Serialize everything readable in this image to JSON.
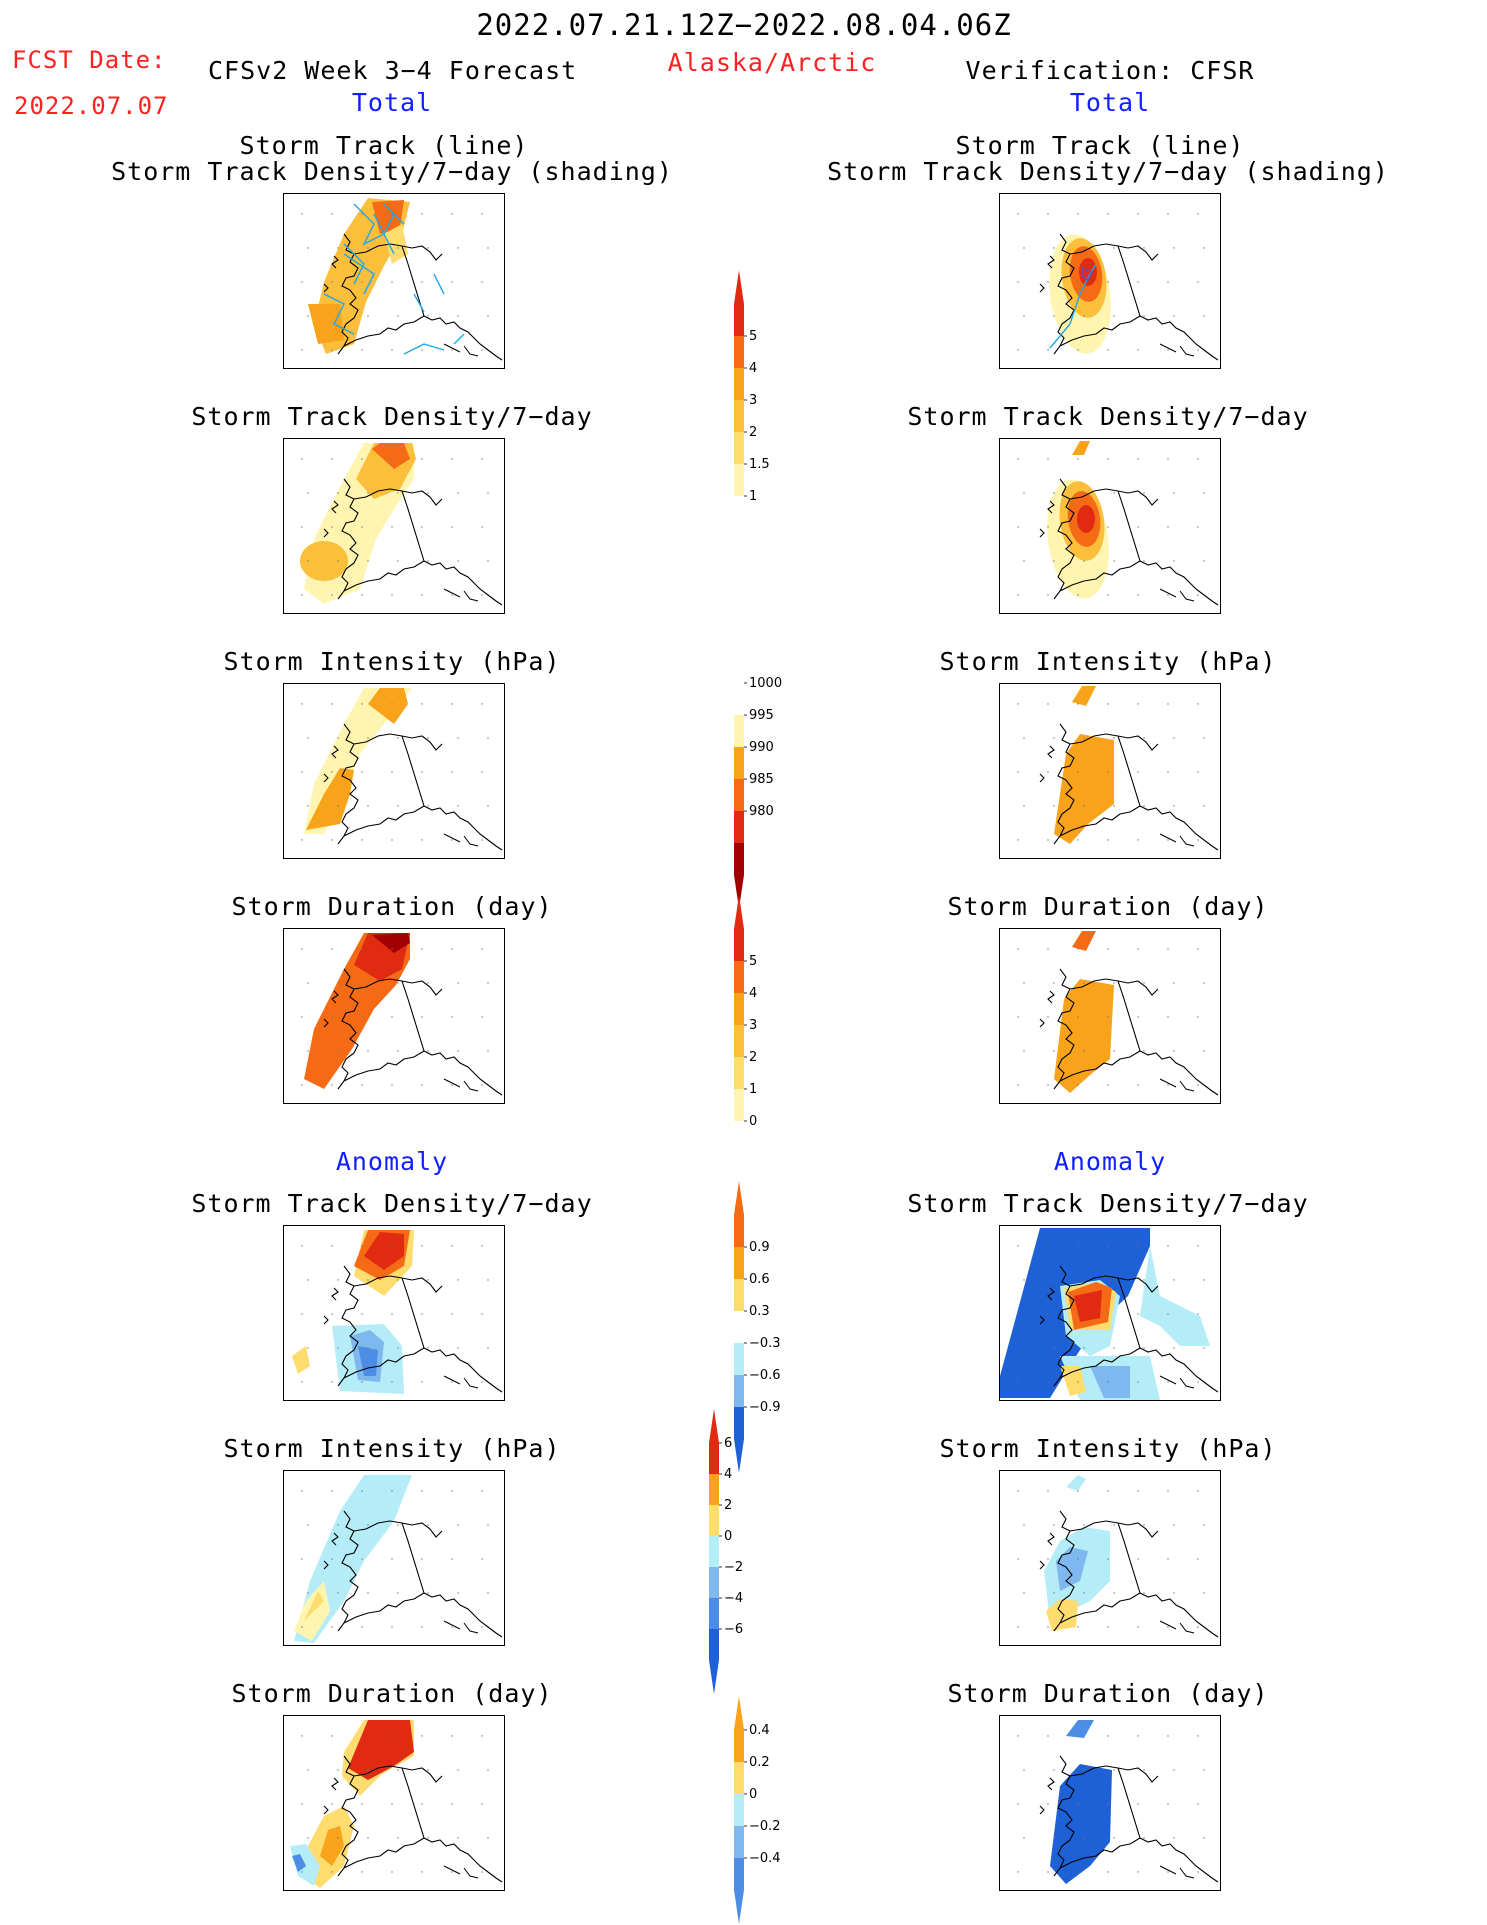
{
  "header": {
    "date_range": "2022.07.21.12Z−2022.08.04.06Z",
    "fcst_label": "FCST Date:",
    "fcst_date": "2022.07.07",
    "forecast_title": "CFSv2 Week 3−4 Forecast",
    "region": "Alaska/Arctic",
    "verification_title": "Verification: CFSR",
    "left_total": "Total",
    "right_total": "Total"
  },
  "sections": {
    "left_anomaly": "Anomaly",
    "right_anomaly": "Anomaly"
  },
  "titles": {
    "track_line": "Storm Track (line)",
    "track_shading": "Storm Track Density/7−day (shading)",
    "density": "Storm Track Density/7−day",
    "intensity": "Storm Intensity (hPa)",
    "duration": "Storm Duration (day)"
  },
  "colorbars": {
    "density_total": [
      "5",
      "4",
      "3",
      "2",
      "1.5",
      "1"
    ],
    "intensity_total": [
      "1000",
      "995",
      "990",
      "985",
      "980"
    ],
    "duration_total": [
      "5",
      "4",
      "3",
      "2",
      "1",
      "0"
    ],
    "density_anom": [
      "0.9",
      "0.6",
      "0.3",
      "−0.3",
      "−0.6",
      "−0.9"
    ],
    "intensity_anom": [
      "6",
      "4",
      "2",
      "0",
      "−2",
      "−4",
      "−6"
    ],
    "duration_anom": [
      "0.4",
      "0.2",
      "0",
      "−0.2",
      "−0.4"
    ]
  },
  "colors": {
    "title_red": "#ff2020",
    "title_blue": "#1020ff",
    "pale_yellow": "#fff5b0",
    "yellow": "#ffdc6e",
    "light_orange": "#fbbf3c",
    "orange": "#f8a31a",
    "dark_orange": "#f56a14",
    "red": "#e02a12",
    "dark_red": "#a00000",
    "light_blue": "#b4ecf8",
    "mid_blue": "#7fb8ee",
    "blue": "#4c8ee6",
    "dark_blue": "#1e60d6",
    "track_line": "#20a8e8"
  }
}
